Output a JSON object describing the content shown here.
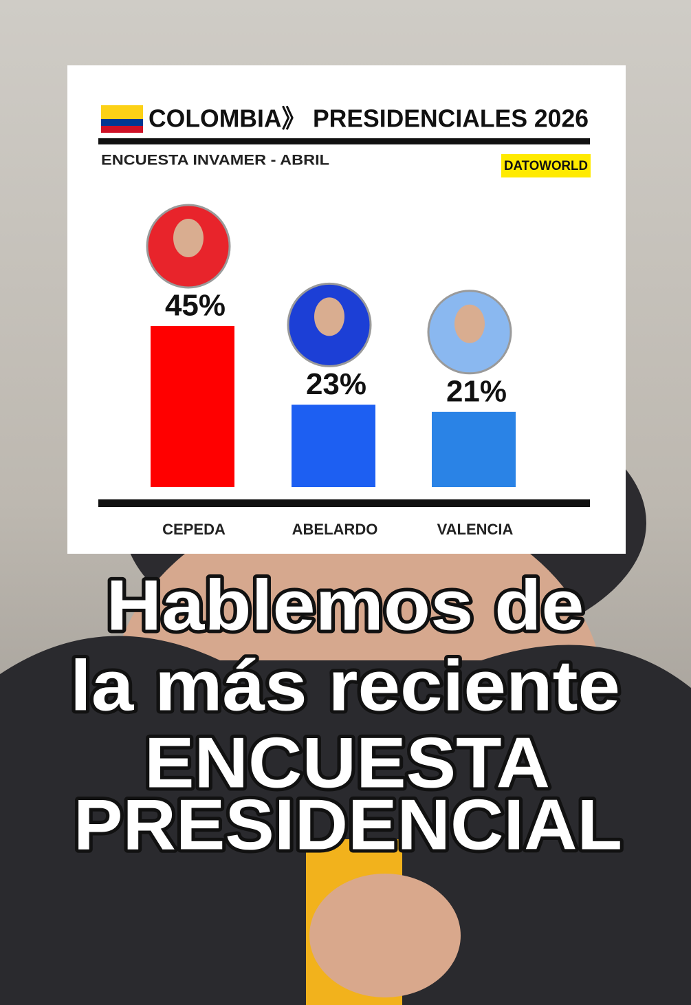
{
  "chart_data": {
    "type": "bar",
    "title": "COLOMBIA》 PRESIDENCIALES 2026",
    "subtitle": "ENCUESTA INVAMER - ABRIL",
    "brand": "DATOWORLD",
    "categories": [
      "CEPEDA",
      "ABELARDO",
      "VALENCIA"
    ],
    "values": [
      45,
      23,
      21
    ],
    "value_labels": [
      "45%",
      "23%",
      "21%"
    ],
    "colors": [
      "#ff0000",
      "#1d5ff2",
      "#2a83e6"
    ]
  },
  "caption": {
    "lines": [
      "Hablemos de",
      "la más reciente",
      "ENCUESTA",
      "PRESIDENCIAL"
    ]
  }
}
